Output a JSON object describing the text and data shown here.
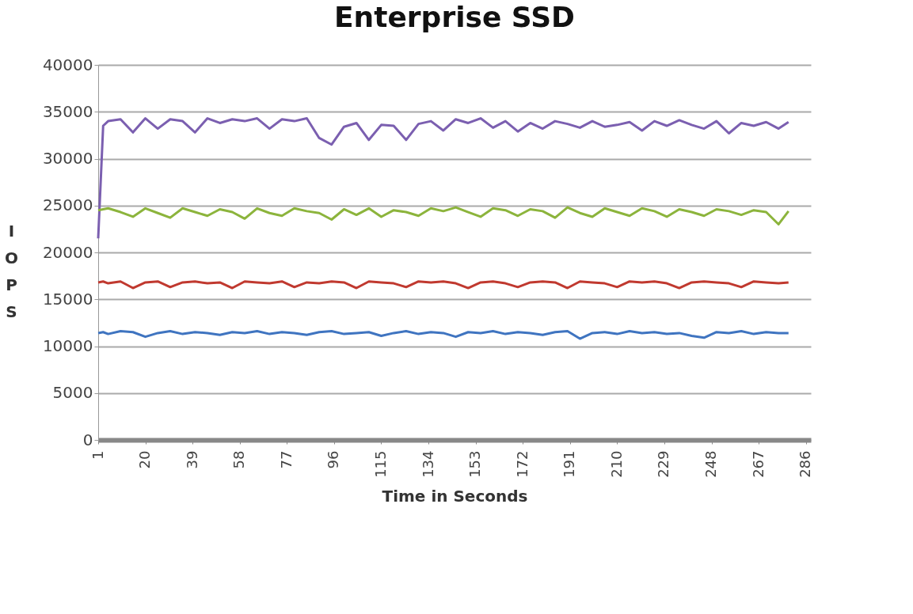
{
  "chart_data": {
    "type": "line",
    "title": "Enterprise SSD",
    "xlabel": "Time in Seconds",
    "ylabel": "IOPS",
    "x": [
      1,
      3,
      5,
      10,
      15,
      20,
      25,
      30,
      35,
      40,
      45,
      50,
      55,
      60,
      65,
      70,
      75,
      80,
      85,
      90,
      95,
      100,
      105,
      110,
      115,
      120,
      125,
      130,
      135,
      140,
      145,
      150,
      155,
      160,
      165,
      170,
      175,
      180,
      185,
      190,
      195,
      200,
      205,
      210,
      215,
      220,
      225,
      230,
      235,
      240,
      245,
      250,
      255,
      260,
      265,
      270,
      275,
      279
    ],
    "series": [
      {
        "color": "#7b5fb0",
        "values": [
          21500,
          33500,
          34000,
          34200,
          32800,
          34300,
          33200,
          34200,
          34000,
          32800,
          34300,
          33800,
          34200,
          34000,
          34300,
          33200,
          34200,
          34000,
          34300,
          32200,
          31500,
          33400,
          33800,
          32000,
          33600,
          33500,
          32000,
          33700,
          34000,
          33000,
          34200,
          33800,
          34300,
          33300,
          34000,
          32900,
          33800,
          33200,
          34000,
          33700,
          33300,
          34000,
          33400,
          33600,
          33900,
          33000,
          34000,
          33500,
          34100,
          33600,
          33200,
          34000,
          32700,
          33800,
          33500,
          33900,
          33200,
          33900
        ]
      },
      {
        "color": "#8cb43c",
        "values": [
          24500,
          24600,
          24700,
          24300,
          23800,
          24700,
          24200,
          23700,
          24700,
          24300,
          23900,
          24600,
          24300,
          23600,
          24700,
          24200,
          23900,
          24700,
          24400,
          24200,
          23500,
          24600,
          24000,
          24700,
          23800,
          24500,
          24300,
          23900,
          24700,
          24400,
          24800,
          24300,
          23800,
          24700,
          24500,
          23900,
          24600,
          24400,
          23700,
          24800,
          24200,
          23800,
          24700,
          24300,
          23900,
          24700,
          24400,
          23800,
          24600,
          24300,
          23900,
          24600,
          24400,
          24000,
          24500,
          24300,
          23000,
          24400
        ]
      },
      {
        "color": "#c0392f",
        "values": [
          16800,
          16900,
          16700,
          16900,
          16200,
          16800,
          16900,
          16300,
          16800,
          16900,
          16700,
          16800,
          16200,
          16900,
          16800,
          16700,
          16900,
          16300,
          16800,
          16700,
          16900,
          16800,
          16200,
          16900,
          16800,
          16700,
          16300,
          16900,
          16800,
          16900,
          16700,
          16200,
          16800,
          16900,
          16700,
          16300,
          16800,
          16900,
          16800,
          16200,
          16900,
          16800,
          16700,
          16300,
          16900,
          16800,
          16900,
          16700,
          16200,
          16800,
          16900,
          16800,
          16700,
          16300,
          16900,
          16800,
          16700,
          16800
        ]
      },
      {
        "color": "#3f74c0",
        "values": [
          11400,
          11500,
          11300,
          11600,
          11500,
          11000,
          11400,
          11600,
          11300,
          11500,
          11400,
          11200,
          11500,
          11400,
          11600,
          11300,
          11500,
          11400,
          11200,
          11500,
          11600,
          11300,
          11400,
          11500,
          11100,
          11400,
          11600,
          11300,
          11500,
          11400,
          11000,
          11500,
          11400,
          11600,
          11300,
          11500,
          11400,
          11200,
          11500,
          11600,
          10800,
          11400,
          11500,
          11300,
          11600,
          11400,
          11500,
          11300,
          11400,
          11100,
          10900,
          11500,
          11400,
          11600,
          11300,
          11500,
          11400,
          11400
        ]
      }
    ],
    "xlim": [
      1,
      288
    ],
    "xticks": [
      1,
      20,
      39,
      58,
      77,
      96,
      115,
      134,
      153,
      172,
      191,
      210,
      229,
      248,
      267,
      286
    ],
    "ylim": [
      0,
      40000
    ],
    "yticks": [
      0,
      5000,
      10000,
      15000,
      20000,
      25000,
      30000,
      35000,
      40000
    ],
    "grid": "y",
    "legend": false,
    "line_style": "solid",
    "marker": "none"
  }
}
